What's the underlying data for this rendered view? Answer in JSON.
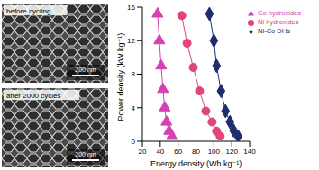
{
  "chart_data": {
    "type": "scatter",
    "x_label": "Energy density (Wh kg⁻¹)",
    "y_label": "Power density (kW kg⁻¹)",
    "xlim": [
      20,
      140
    ],
    "xticks": [
      20,
      40,
      60,
      80,
      100,
      120,
      140
    ],
    "ylim": [
      0,
      16
    ],
    "yticks": [
      0,
      4,
      8,
      12,
      16
    ],
    "grid": false,
    "legend": "upper right",
    "series": [
      {
        "name": "Ni-Co DHs",
        "color": "#1f2d6e",
        "marker": "diamond",
        "line_style": "solid",
        "x": [
          95,
          100,
          103,
          108,
          113,
          118,
          122,
          127
        ],
        "values": [
          15.2,
          12,
          9,
          6,
          3.6,
          2.3,
          1.3,
          0.6
        ]
      },
      {
        "name": "Ni hydroxides",
        "color": "#e0457b",
        "marker": "circle",
        "line_style": "solid",
        "x": [
          64,
          70,
          77,
          84,
          91,
          98,
          103,
          107
        ],
        "values": [
          15,
          11.7,
          8.8,
          6,
          3.6,
          2.3,
          1.2,
          0.6
        ]
      },
      {
        "name": "Co hydroxides",
        "color": "#d63fb5",
        "marker": "triangle",
        "line_style": "solid",
        "x": [
          37,
          39,
          41,
          43,
          45,
          47,
          50,
          53
        ],
        "values": [
          15.2,
          12,
          9,
          6.2,
          4,
          2.3,
          1.2,
          0.6
        ]
      }
    ]
  },
  "images": [
    {
      "label": "before cycling",
      "scale_bar": "200 nm"
    },
    {
      "label": "after 2000 cycles",
      "scale_bar": "200 nm"
    }
  ]
}
